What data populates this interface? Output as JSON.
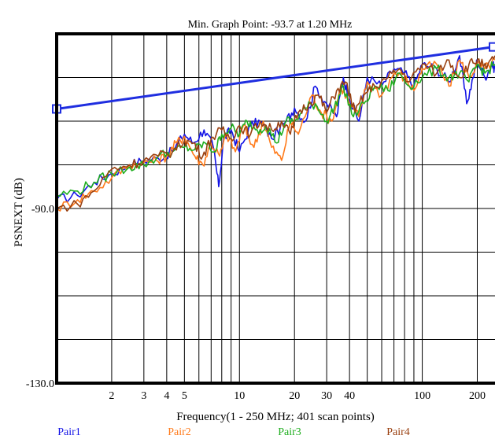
{
  "chart_data": {
    "type": "line",
    "title": "Min. Graph Point: -93.7 at 1.20 MHz",
    "xlabel": "Frequency(1 - 250 MHz; 401 scan points)",
    "ylabel": "PSNEXT (dB)",
    "x_scale": "log",
    "xlim": [
      1,
      250
    ],
    "ylim": [
      -130,
      -50
    ],
    "grid": true,
    "legend_position": "bottom",
    "y_tick_labels": [
      {
        "value": -90,
        "label": "-90.0"
      },
      {
        "value": -130,
        "label": "-130.0"
      }
    ],
    "x_tick_labels": [
      {
        "value": 2,
        "label": "2"
      },
      {
        "value": 3,
        "label": "3"
      },
      {
        "value": 4,
        "label": "4"
      },
      {
        "value": 5,
        "label": "5"
      },
      {
        "value": 10,
        "label": "10"
      },
      {
        "value": 20,
        "label": "20"
      },
      {
        "value": 30,
        "label": "30"
      },
      {
        "value": 40,
        "label": "40"
      },
      {
        "value": 100,
        "label": "100"
      },
      {
        "value": 200,
        "label": "200"
      }
    ],
    "limit_line": {
      "color": "#1f2ee0",
      "points": [
        [
          1,
          -67.2
        ],
        [
          250,
          -53.0
        ]
      ]
    },
    "series": [
      {
        "name": "Pair1",
        "color": "#1414e6",
        "points": [
          [
            1,
            -88
          ],
          [
            1.3,
            -87
          ],
          [
            1.6,
            -84
          ],
          [
            2,
            -82
          ],
          [
            2.5,
            -80
          ],
          [
            3,
            -79
          ],
          [
            3.6,
            -78.5
          ],
          [
            4.3,
            -77
          ],
          [
            5,
            -73
          ],
          [
            5.6,
            -75
          ],
          [
            6.4,
            -72
          ],
          [
            7.2,
            -76
          ],
          [
            7.7,
            -85
          ],
          [
            8.2,
            -74
          ],
          [
            9,
            -72
          ],
          [
            10,
            -77
          ],
          [
            11.5,
            -71
          ],
          [
            13,
            -70
          ],
          [
            15,
            -74
          ],
          [
            18,
            -70
          ],
          [
            20,
            -67
          ],
          [
            23,
            -70
          ],
          [
            26,
            -62
          ],
          [
            30,
            -66
          ],
          [
            34,
            -69
          ],
          [
            37,
            -60
          ],
          [
            40,
            -65
          ],
          [
            45,
            -70
          ],
          [
            50,
            -60
          ],
          [
            60,
            -62
          ],
          [
            70,
            -58
          ],
          [
            80,
            -59
          ],
          [
            90,
            -62
          ],
          [
            100,
            -57
          ],
          [
            120,
            -58
          ],
          [
            140,
            -61
          ],
          [
            160,
            -55
          ],
          [
            175,
            -66
          ],
          [
            190,
            -60
          ],
          [
            200,
            -56
          ],
          [
            220,
            -60
          ],
          [
            240,
            -57
          ],
          [
            250,
            -58
          ]
        ]
      },
      {
        "name": "Pair2",
        "color": "#ff7a1a",
        "points": [
          [
            1,
            -90
          ],
          [
            1.3,
            -88
          ],
          [
            1.6,
            -86
          ],
          [
            2,
            -83
          ],
          [
            2.5,
            -80
          ],
          [
            3,
            -79.5
          ],
          [
            3.5,
            -79
          ],
          [
            4,
            -78
          ],
          [
            4.5,
            -75
          ],
          [
            5,
            -73.5
          ],
          [
            5.7,
            -78
          ],
          [
            6.3,
            -80
          ],
          [
            7,
            -75
          ],
          [
            7.8,
            -78
          ],
          [
            8.5,
            -73
          ],
          [
            9.5,
            -77
          ],
          [
            10.5,
            -71
          ],
          [
            12,
            -76
          ],
          [
            13.5,
            -70
          ],
          [
            15,
            -76
          ],
          [
            17,
            -79
          ],
          [
            19,
            -70
          ],
          [
            21,
            -73
          ],
          [
            25,
            -64
          ],
          [
            28,
            -68
          ],
          [
            32,
            -70
          ],
          [
            36,
            -62
          ],
          [
            40,
            -66
          ],
          [
            45,
            -69
          ],
          [
            50,
            -61
          ],
          [
            60,
            -64
          ],
          [
            70,
            -59
          ],
          [
            80,
            -60
          ],
          [
            90,
            -63
          ],
          [
            100,
            -58
          ],
          [
            120,
            -57
          ],
          [
            140,
            -62
          ],
          [
            160,
            -56
          ],
          [
            180,
            -60
          ],
          [
            200,
            -57
          ],
          [
            220,
            -58
          ],
          [
            250,
            -56
          ]
        ]
      },
      {
        "name": "Pair3",
        "color": "#1fae1f",
        "points": [
          [
            1,
            -87
          ],
          [
            1.3,
            -86
          ],
          [
            1.6,
            -84
          ],
          [
            2,
            -82
          ],
          [
            2.5,
            -80.5
          ],
          [
            3,
            -80
          ],
          [
            3.6,
            -78
          ],
          [
            4.3,
            -77
          ],
          [
            5,
            -76
          ],
          [
            5.7,
            -76.5
          ],
          [
            6.5,
            -75
          ],
          [
            7.3,
            -77
          ],
          [
            8,
            -73
          ],
          [
            9,
            -71.5
          ],
          [
            10,
            -73
          ],
          [
            11,
            -70
          ],
          [
            12.5,
            -72
          ],
          [
            14,
            -71
          ],
          [
            16,
            -75
          ],
          [
            18,
            -70
          ],
          [
            20,
            -70
          ],
          [
            23,
            -67
          ],
          [
            26,
            -66
          ],
          [
            30,
            -70
          ],
          [
            33,
            -67
          ],
          [
            37,
            -62
          ],
          [
            42,
            -69
          ],
          [
            48,
            -66
          ],
          [
            55,
            -62
          ],
          [
            65,
            -63
          ],
          [
            75,
            -59
          ],
          [
            85,
            -62
          ],
          [
            100,
            -60
          ],
          [
            120,
            -58
          ],
          [
            140,
            -60
          ],
          [
            160,
            -59
          ],
          [
            180,
            -61
          ],
          [
            200,
            -57
          ],
          [
            220,
            -59
          ],
          [
            250,
            -57
          ]
        ]
      },
      {
        "name": "Pair4",
        "color": "#9a4010",
        "points": [
          [
            1,
            -90
          ],
          [
            1.3,
            -89
          ],
          [
            1.6,
            -86
          ],
          [
            2,
            -81
          ],
          [
            2.5,
            -80
          ],
          [
            3,
            -79
          ],
          [
            3.6,
            -78
          ],
          [
            4.3,
            -77
          ],
          [
            5,
            -74.5
          ],
          [
            5.6,
            -75
          ],
          [
            6.3,
            -78
          ],
          [
            7,
            -74
          ],
          [
            8,
            -72
          ],
          [
            9,
            -74
          ],
          [
            10,
            -71
          ],
          [
            11.5,
            -73
          ],
          [
            13,
            -70
          ],
          [
            15,
            -72
          ],
          [
            17,
            -70
          ],
          [
            19,
            -73
          ],
          [
            21,
            -68
          ],
          [
            24,
            -66
          ],
          [
            27,
            -64
          ],
          [
            30,
            -68
          ],
          [
            34,
            -63
          ],
          [
            38,
            -61
          ],
          [
            43,
            -68
          ],
          [
            48,
            -64
          ],
          [
            55,
            -62
          ],
          [
            65,
            -60
          ],
          [
            75,
            -58
          ],
          [
            85,
            -61
          ],
          [
            100,
            -57
          ],
          [
            120,
            -59
          ],
          [
            140,
            -56
          ],
          [
            160,
            -60
          ],
          [
            180,
            -57
          ],
          [
            200,
            -56
          ],
          [
            225,
            -58
          ],
          [
            250,
            -55
          ]
        ]
      }
    ]
  }
}
